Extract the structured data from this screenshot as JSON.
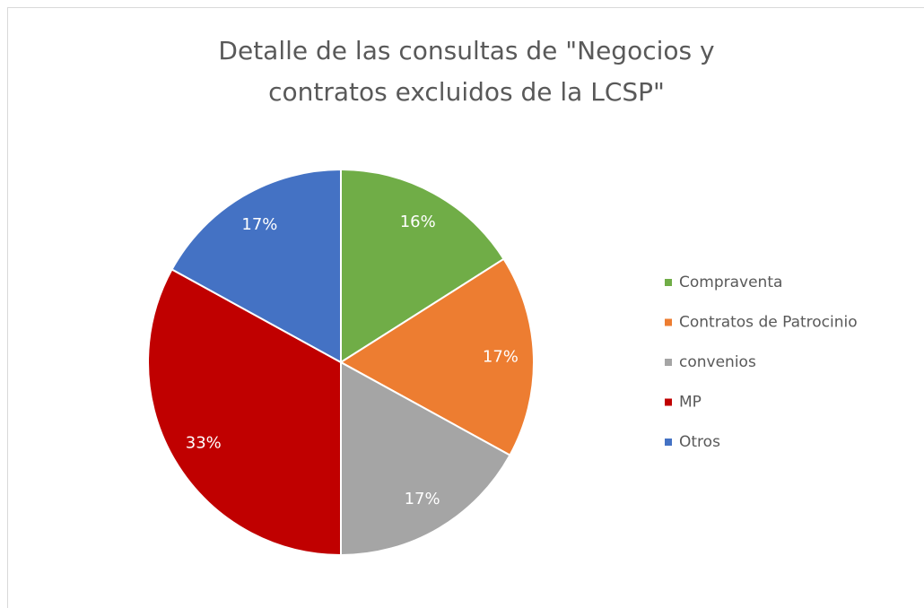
{
  "chart_data": {
    "type": "pie",
    "title": "Detalle de las consultas de \"Negocios y contratos excluidos de la LCSP\"",
    "categories": [
      "Compraventa",
      "Contratos de Patrocinio",
      "convenios",
      "MP",
      "Otros"
    ],
    "values": [
      16,
      17,
      17,
      33,
      17
    ],
    "value_labels": [
      "16%",
      "17%",
      "17%",
      "33%",
      "17%"
    ],
    "colors": [
      "#70ad47",
      "#ed7d31",
      "#a5a5a5",
      "#c00000",
      "#4472c4"
    ],
    "legend": "right"
  }
}
